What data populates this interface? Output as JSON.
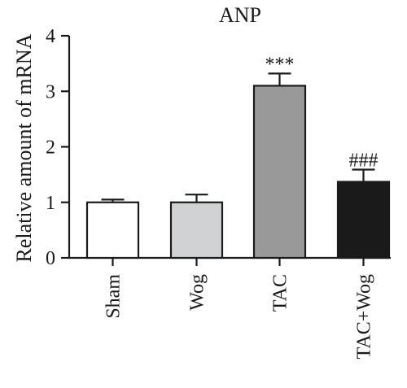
{
  "chart_data": {
    "type": "bar",
    "title": "ANP",
    "xlabel": "",
    "ylabel": "Relative amount of mRNA",
    "ylim": [
      0,
      4
    ],
    "yticks": [
      "0",
      "1",
      "2",
      "3",
      "4"
    ],
    "categories": [
      "Sham",
      "Wog",
      "TAC",
      "TAC+Wog"
    ],
    "values": [
      1.0,
      1.0,
      3.1,
      1.37
    ],
    "errors": [
      0.05,
      0.14,
      0.22,
      0.22
    ],
    "annotations": [
      "",
      "",
      "***",
      "###"
    ],
    "colors": [
      "#ffffff",
      "#d0d2d3",
      "#999999",
      "#1a1a1a"
    ],
    "edge_color": "#1a1a1a",
    "grid": false,
    "legend": "none"
  }
}
